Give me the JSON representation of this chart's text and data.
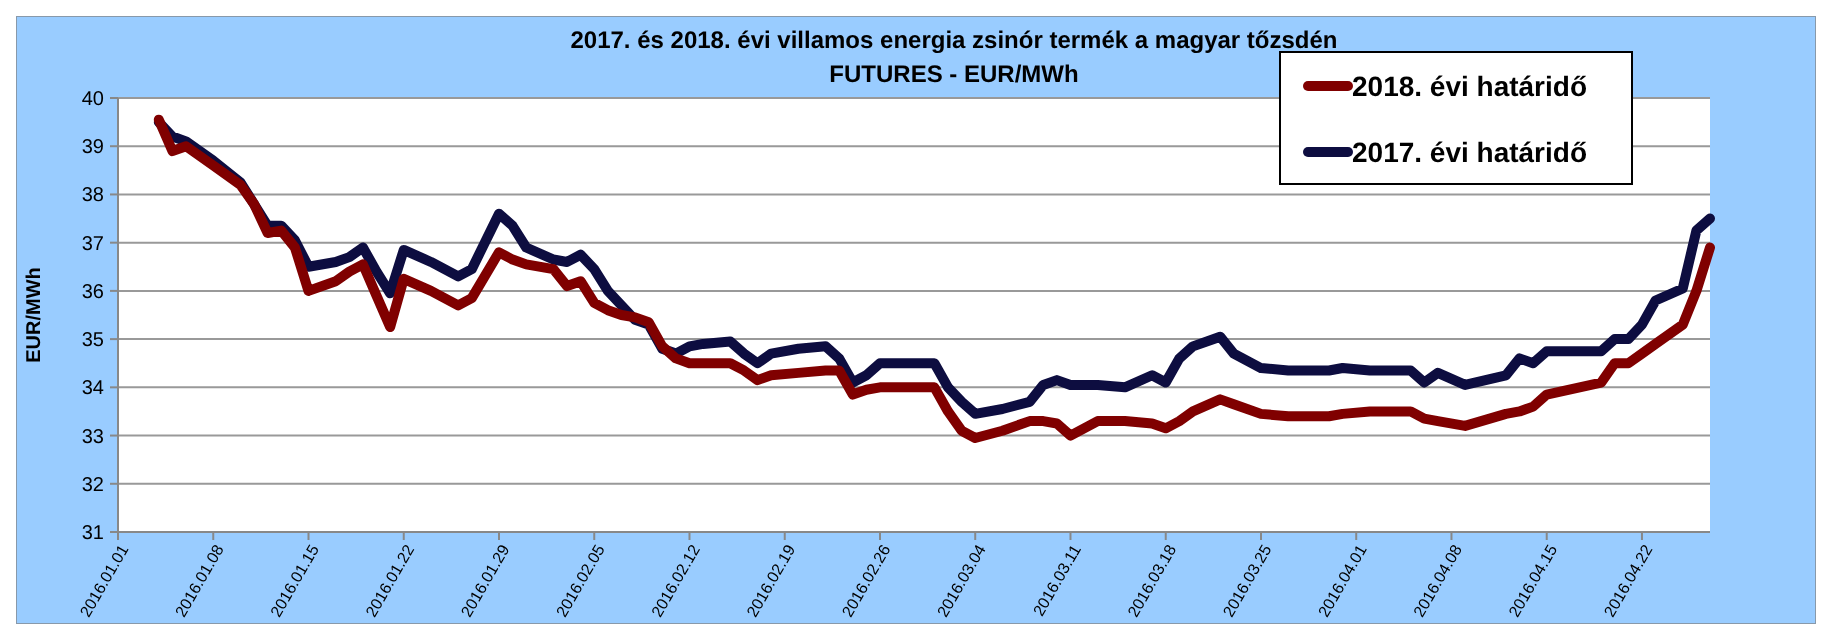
{
  "chart_data": {
    "type": "line",
    "title": "2017. és 2018. évi villamos energia zsinór termék a magyar tőzsdén",
    "subtitle": "FUTURES - EUR/MWh",
    "ylabel": "EUR/MWh",
    "x": [
      "2016-01-04",
      "2016-01-05",
      "2016-01-06",
      "2016-01-08",
      "2016-01-10",
      "2016-01-11",
      "2016-01-12",
      "2016-01-13",
      "2016-01-14",
      "2016-01-15",
      "2016-01-17",
      "2016-01-18",
      "2016-01-19",
      "2016-01-20",
      "2016-01-21",
      "2016-01-22",
      "2016-01-24",
      "2016-01-26",
      "2016-01-27",
      "2016-01-29",
      "2016-01-30",
      "2016-01-31",
      "2016-02-02",
      "2016-02-03",
      "2016-02-04",
      "2016-02-05",
      "2016-02-06",
      "2016-02-07",
      "2016-02-08",
      "2016-02-09",
      "2016-02-10",
      "2016-02-11",
      "2016-02-12",
      "2016-02-13",
      "2016-02-15",
      "2016-02-16",
      "2016-02-17",
      "2016-02-18",
      "2016-02-20",
      "2016-02-22",
      "2016-02-23",
      "2016-02-24",
      "2016-02-25",
      "2016-02-26",
      "2016-03-01",
      "2016-03-02",
      "2016-03-03",
      "2016-03-04",
      "2016-03-06",
      "2016-03-08",
      "2016-03-09",
      "2016-03-10",
      "2016-03-11",
      "2016-03-13",
      "2016-03-15",
      "2016-03-17",
      "2016-03-18",
      "2016-03-19",
      "2016-03-20",
      "2016-03-22",
      "2016-03-23",
      "2016-03-25",
      "2016-03-27",
      "2016-03-30",
      "2016-03-31",
      "2016-04-02",
      "2016-04-05",
      "2016-04-06",
      "2016-04-07",
      "2016-04-09",
      "2016-04-12",
      "2016-04-13",
      "2016-04-14",
      "2016-04-15",
      "2016-04-19",
      "2016-04-20",
      "2016-04-21",
      "2016-04-22",
      "2016-04-23",
      "2016-04-25",
      "2016-04-26",
      "2016-04-27"
    ],
    "series": [
      {
        "name": "2018. évi határidő",
        "color": "#800000",
        "values": [
          39.55,
          38.9,
          39.0,
          38.6,
          38.2,
          37.8,
          37.2,
          37.25,
          36.9,
          36.0,
          36.2,
          36.4,
          36.55,
          35.9,
          35.25,
          36.25,
          36.0,
          35.7,
          35.85,
          36.8,
          36.65,
          36.55,
          36.45,
          36.1,
          36.2,
          35.75,
          35.6,
          35.5,
          35.45,
          35.35,
          34.85,
          34.6,
          34.5,
          34.5,
          34.5,
          34.35,
          34.15,
          34.25,
          34.3,
          34.35,
          34.35,
          33.85,
          33.95,
          34.0,
          34.0,
          33.5,
          33.1,
          32.95,
          33.1,
          33.3,
          33.3,
          33.25,
          33.0,
          33.3,
          33.3,
          33.25,
          33.15,
          33.3,
          33.5,
          33.75,
          33.65,
          33.45,
          33.4,
          33.4,
          33.45,
          33.5,
          33.5,
          33.35,
          33.3,
          33.2,
          33.45,
          33.5,
          33.6,
          33.85,
          34.1,
          34.5,
          34.5,
          34.7,
          34.9,
          35.3,
          36.0,
          36.9
        ]
      },
      {
        "name": "2017. évi határidő",
        "color": "#0d0d40",
        "values": [
          39.5,
          39.2,
          39.1,
          38.7,
          38.25,
          37.8,
          37.35,
          37.35,
          37.05,
          36.5,
          36.6,
          36.7,
          36.9,
          36.4,
          35.95,
          36.85,
          36.6,
          36.3,
          36.45,
          37.6,
          37.35,
          36.9,
          36.65,
          36.6,
          36.75,
          36.45,
          36.0,
          35.7,
          35.4,
          35.3,
          34.8,
          34.7,
          34.85,
          34.9,
          34.95,
          34.7,
          34.5,
          34.7,
          34.8,
          34.85,
          34.6,
          34.1,
          34.25,
          34.5,
          34.5,
          34.0,
          33.7,
          33.45,
          33.55,
          33.7,
          34.05,
          34.15,
          34.05,
          34.05,
          34.0,
          34.25,
          34.1,
          34.6,
          34.85,
          35.05,
          34.7,
          34.4,
          34.35,
          34.35,
          34.4,
          34.35,
          34.35,
          34.1,
          34.3,
          34.05,
          34.25,
          34.6,
          34.5,
          34.75,
          34.75,
          35.0,
          35.0,
          35.3,
          35.8,
          36.05,
          37.25,
          37.5
        ]
      }
    ],
    "xlim": [
      "2016-01-01",
      "2016-04-27"
    ],
    "xticks": [
      {
        "value": "2016-01-01",
        "label": "2016.01.01"
      },
      {
        "value": "2016-01-08",
        "label": "2016.01.08"
      },
      {
        "value": "2016-01-15",
        "label": "2016.01.15"
      },
      {
        "value": "2016-01-22",
        "label": "2016.01.22"
      },
      {
        "value": "2016-01-29",
        "label": "2016.01.29"
      },
      {
        "value": "2016-02-05",
        "label": "2016.02.05"
      },
      {
        "value": "2016-02-12",
        "label": "2016.02.12"
      },
      {
        "value": "2016-02-19",
        "label": "2016.02.19"
      },
      {
        "value": "2016-02-26",
        "label": "2016.02.26"
      },
      {
        "value": "2016-03-04",
        "label": "2016.03.04"
      },
      {
        "value": "2016-03-11",
        "label": "2016.03.11"
      },
      {
        "value": "2016-03-18",
        "label": "2016.03.18"
      },
      {
        "value": "2016-03-25",
        "label": "2016.03.25"
      },
      {
        "value": "2016-04-01",
        "label": "2016.04.01"
      },
      {
        "value": "2016-04-08",
        "label": "2016.04.08"
      },
      {
        "value": "2016-04-15",
        "label": "2016.04.15"
      },
      {
        "value": "2016-04-22",
        "label": "2016.04.22"
      }
    ],
    "ylim": [
      31,
      40
    ],
    "yticks": [
      31,
      32,
      33,
      34,
      35,
      36,
      37,
      38,
      39,
      40
    ],
    "grid": "y",
    "legend": "top right",
    "marker": "none",
    "line_style": "solid"
  }
}
